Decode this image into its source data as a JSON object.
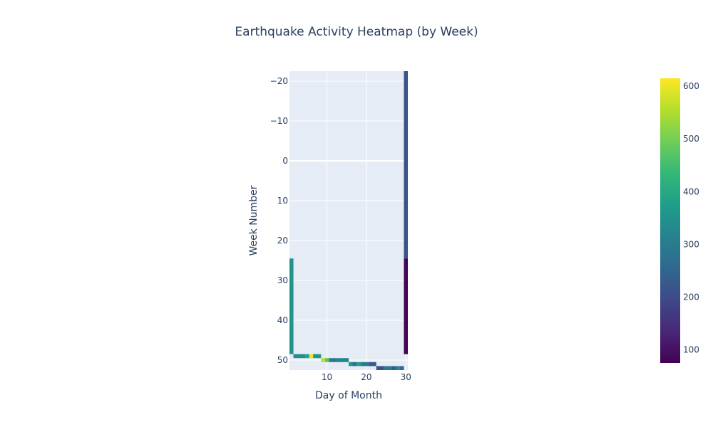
{
  "chart_data": {
    "type": "heatmap",
    "title": "Earthquake Activity Heatmap (by Week)",
    "xlabel": "Day of Month",
    "ylabel": "Week Number",
    "xlim": [
      0.5,
      30.5
    ],
    "ylim": [
      52.5,
      -22.5
    ],
    "x_ticks": [
      10,
      20,
      30
    ],
    "y_ticks": [
      -20,
      -10,
      0,
      10,
      20,
      30,
      40,
      50
    ],
    "grid": true,
    "colorscale": "Viridis",
    "colorbar": {
      "range": [
        75,
        615
      ],
      "ticks": [
        100,
        200,
        300,
        400,
        500,
        600
      ]
    },
    "colorscale_stops": [
      "#440154",
      "#482878",
      "#3e4989",
      "#31688e",
      "#26828e",
      "#1f9e89",
      "#35b779",
      "#6ece58",
      "#b5de2b",
      "#fde725"
    ],
    "cells": [
      {
        "x0": 0.5,
        "x1": 1.5,
        "y0": 24.5,
        "y1": 48.5,
        "value": 350
      },
      {
        "x0": 1.5,
        "x1": 4.5,
        "y0": 48.5,
        "y1": 49.5,
        "value": 340
      },
      {
        "x0": 4.5,
        "x1": 5.5,
        "y0": 48.5,
        "y1": 49.5,
        "value": 380
      },
      {
        "x0": 5.5,
        "x1": 6.5,
        "y0": 48.5,
        "y1": 49.5,
        "value": 600
      },
      {
        "x0": 6.5,
        "x1": 8.5,
        "y0": 48.5,
        "y1": 49.5,
        "value": 360
      },
      {
        "x0": 8.5,
        "x1": 9.5,
        "y0": 49.5,
        "y1": 50.5,
        "value": 560
      },
      {
        "x0": 9.5,
        "x1": 10.5,
        "y0": 49.5,
        "y1": 50.5,
        "value": 480
      },
      {
        "x0": 10.5,
        "x1": 12.5,
        "y0": 49.5,
        "y1": 50.5,
        "value": 300
      },
      {
        "x0": 12.5,
        "x1": 15.5,
        "y0": 49.5,
        "y1": 50.5,
        "value": 320
      },
      {
        "x0": 15.5,
        "x1": 16.5,
        "y0": 50.5,
        "y1": 51.5,
        "value": 360
      },
      {
        "x0": 16.5,
        "x1": 17.5,
        "y0": 50.5,
        "y1": 51.5,
        "value": 280
      },
      {
        "x0": 17.5,
        "x1": 18.5,
        "y0": 50.5,
        "y1": 51.5,
        "value": 380
      },
      {
        "x0": 18.5,
        "x1": 20.5,
        "y0": 50.5,
        "y1": 51.5,
        "value": 300
      },
      {
        "x0": 20.5,
        "x1": 22.5,
        "y0": 50.5,
        "y1": 51.5,
        "value": 230
      },
      {
        "x0": 22.5,
        "x1": 24.5,
        "y0": 51.5,
        "y1": 52.5,
        "value": 210
      },
      {
        "x0": 24.5,
        "x1": 26.5,
        "y0": 51.5,
        "y1": 52.5,
        "value": 290
      },
      {
        "x0": 26.5,
        "x1": 27.5,
        "y0": 51.5,
        "y1": 52.5,
        "value": 230
      },
      {
        "x0": 27.5,
        "x1": 28.5,
        "y0": 51.5,
        "y1": 52.5,
        "value": 330
      },
      {
        "x0": 28.5,
        "x1": 29.5,
        "y0": 51.5,
        "y1": 52.5,
        "value": 260
      },
      {
        "x0": 29.5,
        "x1": 30.5,
        "y0": -22.5,
        "y1": 24.5,
        "value": 215
      },
      {
        "x0": 29.5,
        "x1": 30.5,
        "y0": 24.5,
        "y1": 48.5,
        "value": 80
      }
    ]
  }
}
